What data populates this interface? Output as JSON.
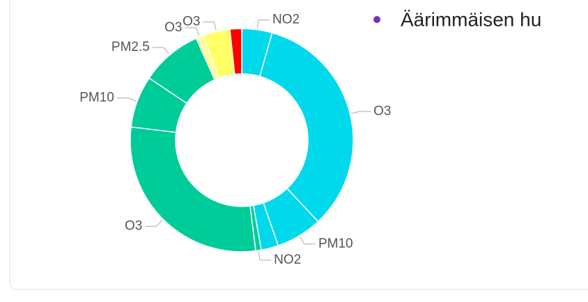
{
  "chart_data": {
    "type": "donut",
    "categories": [
      "NO2",
      "O3",
      "PM10",
      null,
      "NO2",
      "O3",
      "PM10",
      "PM2.5",
      "O3",
      "O3",
      null
    ],
    "values": [
      4.4,
      33.6,
      6.7,
      2.5,
      0.8,
      28.9,
      7.5,
      8.9,
      1.1,
      3.9,
      1.7
    ],
    "colors": [
      "#00d9ec",
      "#00d9ec",
      "#00d9ec",
      "#00d9ec",
      "#00cc99",
      "#00cc99",
      "#00cc99",
      "#00cc99",
      "#ffff99",
      "#ffff66",
      "#ff0000"
    ],
    "legend": [
      {
        "label": "Äärimmäisen hu",
        "color": "#7b2fb0"
      }
    ]
  }
}
